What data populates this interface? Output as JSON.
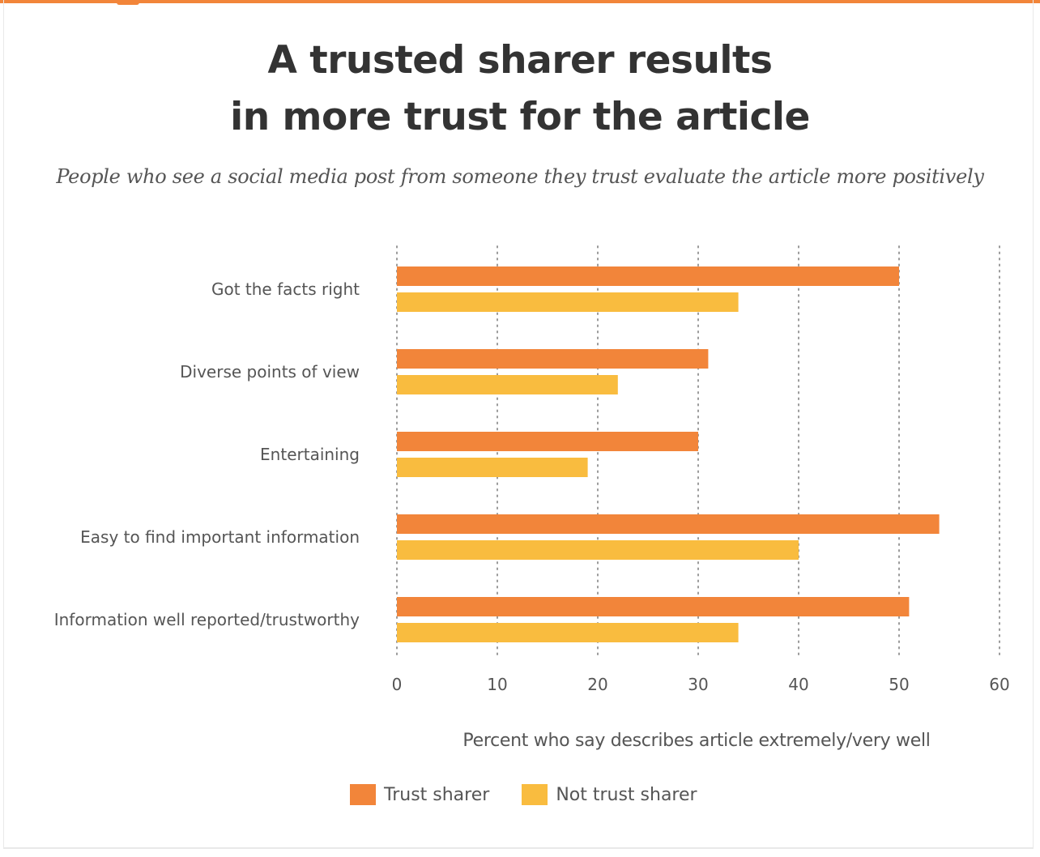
{
  "title_lines": [
    "A trusted sharer results",
    "in more trust for the article"
  ],
  "subtitle": "People who see a social media post from someone they trust evaluate the article more positively",
  "colors": {
    "trust": "#f2853a",
    "not_trust": "#f9bc3f",
    "grid": "#9a9a9a",
    "label": "#555555"
  },
  "chart_data": {
    "type": "bar",
    "orientation": "horizontal",
    "categories": [
      "Got the facts right",
      "Diverse points of view",
      "Entertaining",
      "Easy to find important information",
      "Information well reported/trustworthy"
    ],
    "series": [
      {
        "name": "Trust sharer",
        "values": [
          50,
          31,
          30,
          54,
          51
        ]
      },
      {
        "name": "Not trust sharer",
        "values": [
          34,
          22,
          19,
          40,
          34
        ]
      }
    ],
    "xlabel": "Percent who say describes article extremely/very well",
    "xlim": [
      0,
      60
    ],
    "xticks": [
      0,
      10,
      20,
      30,
      40,
      50,
      60
    ],
    "grid": "vertical dotted",
    "legend_position": "bottom"
  }
}
